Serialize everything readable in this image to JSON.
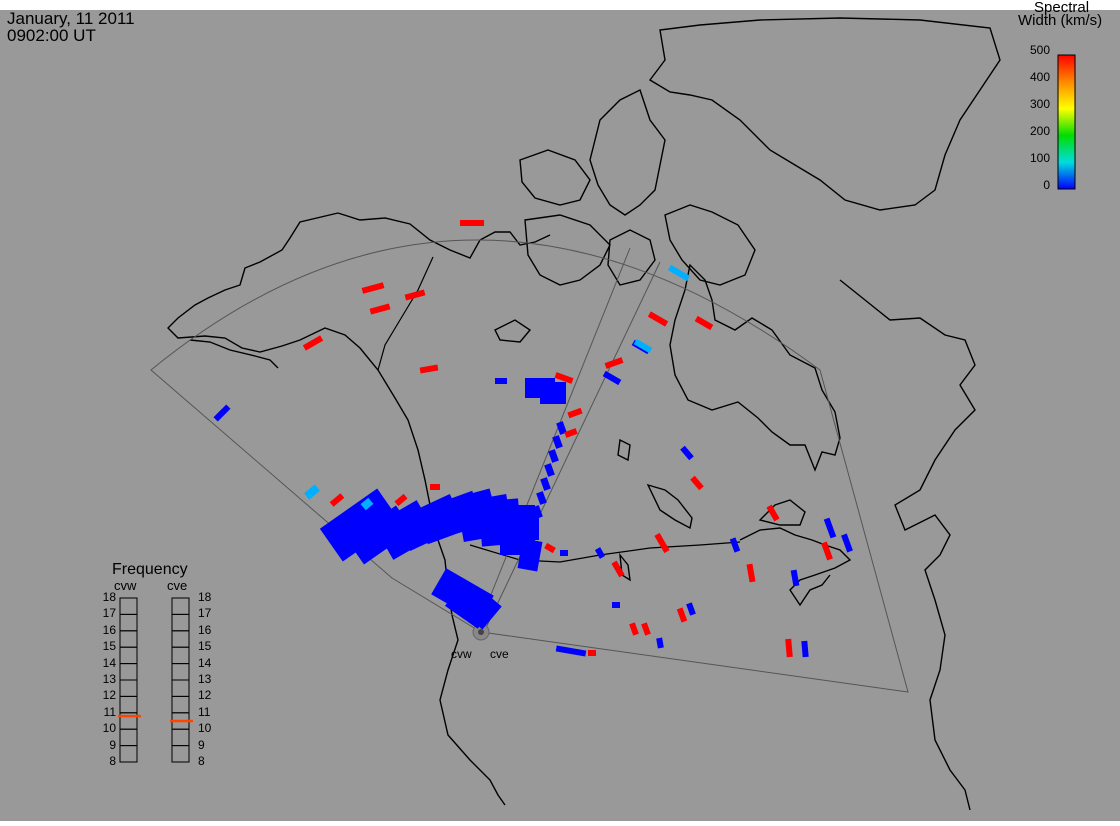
{
  "header": {
    "date": "January, 11 2011",
    "time": "0902:00 UT"
  },
  "colorbar": {
    "title_line1": "Spectral",
    "title_line2": "Width (km/s)",
    "ticks": [
      "500",
      "400",
      "300",
      "200",
      "100",
      "0"
    ],
    "gradient": [
      "#ff0000",
      "#ff8800",
      "#ffff00",
      "#00dd00",
      "#00dddd",
      "#0000ff"
    ]
  },
  "frequency_panel": {
    "title": "Frequency",
    "radars": [
      {
        "name": "cvw",
        "value_mhz": 10.8
      },
      {
        "name": "cve",
        "value_mhz": 10.5
      }
    ],
    "scale": [
      "18",
      "17",
      "16",
      "15",
      "14",
      "13",
      "12",
      "11",
      "10",
      "9",
      "8"
    ]
  },
  "radar_labels": {
    "west": "cvw",
    "east": "cve"
  },
  "colors": {
    "background": "#999999",
    "strong": "#ff0000",
    "weak": "#0000ff",
    "mid": "#00b0ff",
    "marker": "#ff4400"
  }
}
